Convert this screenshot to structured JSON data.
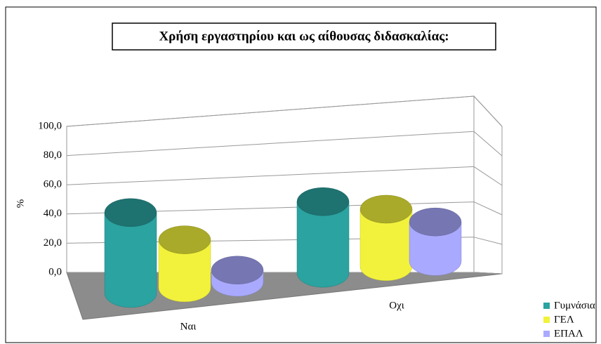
{
  "chart_data": {
    "type": "bar3d",
    "title": "Χρήση εργαστηρίου και ως αίθουσας διδασκαλίας:",
    "ylabel": "%",
    "categories": [
      "Ναι",
      "Οχι"
    ],
    "series": [
      {
        "name": "Γυμνάσια",
        "color": "#2ba3a0",
        "values": [
          48,
          52
        ]
      },
      {
        "name": "ΓΕΛ",
        "color": "#f2f23c",
        "values": [
          30,
          45
        ]
      },
      {
        "name": "ΕΠΑΛ",
        "color": "#a9a9ff",
        "values": [
          8,
          33
        ]
      }
    ],
    "ylim": [
      0,
      100
    ],
    "yticks": [
      {
        "value": 0,
        "label": "0,0"
      },
      {
        "value": 20,
        "label": "20,0"
      },
      {
        "value": 40,
        "label": "40,0"
      },
      {
        "value": 60,
        "label": "60,0"
      },
      {
        "value": 80,
        "label": "80,0"
      },
      {
        "value": 100,
        "label": "100,0"
      }
    ],
    "grid": true,
    "legend": "bottom-right"
  }
}
